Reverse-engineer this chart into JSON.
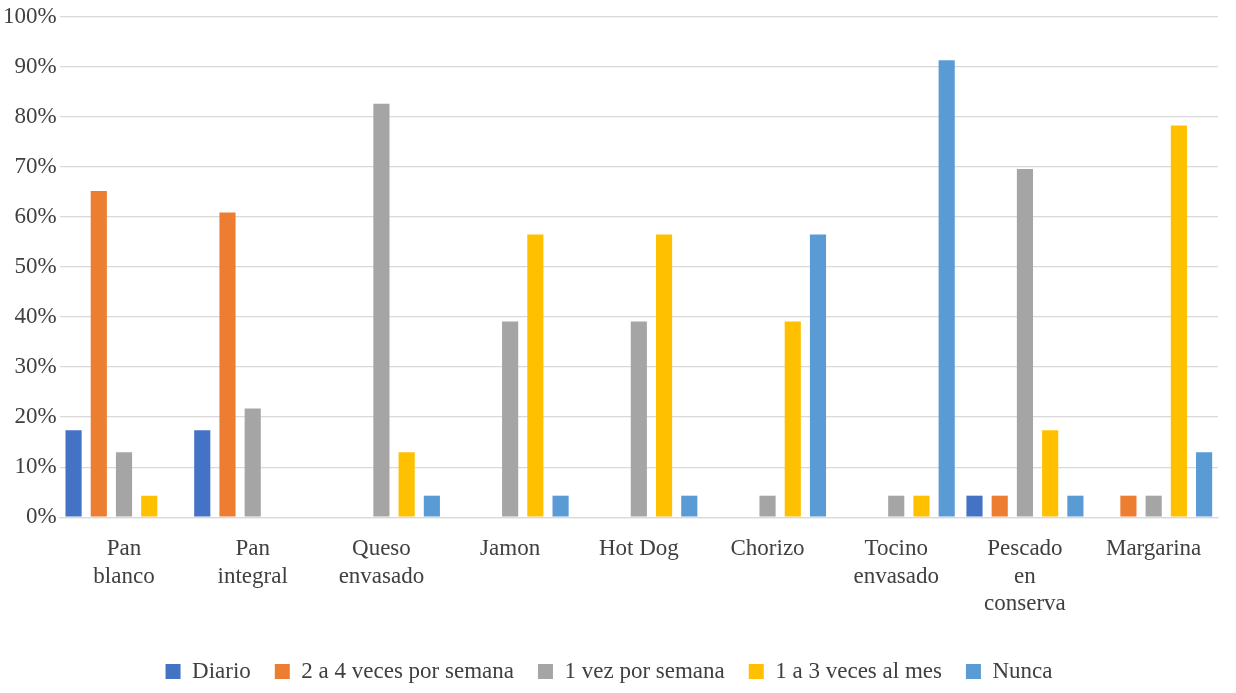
{
  "chart_data": {
    "type": "bar",
    "categories": [
      "Pan blanco",
      "Pan integral",
      "Queso envasado",
      "Jamon",
      "Hot Dog",
      "Chorizo",
      "Tocino envasado",
      "Pescado en conserva",
      "Margarina"
    ],
    "series": [
      {
        "name": "Diario",
        "color": "#4472c4",
        "values": [
          17.4,
          17.4,
          0,
          0,
          0,
          0,
          0,
          4.3,
          0
        ]
      },
      {
        "name": "2 a 4 veces por semana",
        "color": "#ed7d31",
        "values": [
          65.2,
          60.9,
          0,
          0,
          0,
          0,
          0,
          4.3,
          4.3
        ]
      },
      {
        "name": "1 vez por semana",
        "color": "#a5a5a5",
        "values": [
          13,
          21.7,
          82.6,
          39.1,
          39.1,
          4.3,
          4.3,
          69.6,
          4.3
        ]
      },
      {
        "name": "1 a 3 veces al mes",
        "color": "#ffc000",
        "values": [
          4.3,
          0,
          13,
          56.5,
          56.5,
          39.1,
          4.3,
          17.4,
          78.3
        ]
      },
      {
        "name": "Nunca",
        "color": "#5b9bd5",
        "values": [
          0,
          0,
          4.3,
          4.3,
          4.3,
          56.5,
          91.3,
          4.3,
          13
        ]
      }
    ],
    "ylim": [
      0,
      100
    ],
    "yticks": [
      {
        "value": 0,
        "label": "0%"
      },
      {
        "value": 10,
        "label": "10%"
      },
      {
        "value": 20,
        "label": "20%"
      },
      {
        "value": 30,
        "label": "30%"
      },
      {
        "value": 40,
        "label": "40%"
      },
      {
        "value": 50,
        "label": "50%"
      },
      {
        "value": 60,
        "label": "60%"
      },
      {
        "value": 70,
        "label": "70%"
      },
      {
        "value": 80,
        "label": "80%"
      },
      {
        "value": 90,
        "label": "90%"
      },
      {
        "value": 100,
        "label": "100%"
      }
    ],
    "grid": "y",
    "legend": "bottom"
  }
}
